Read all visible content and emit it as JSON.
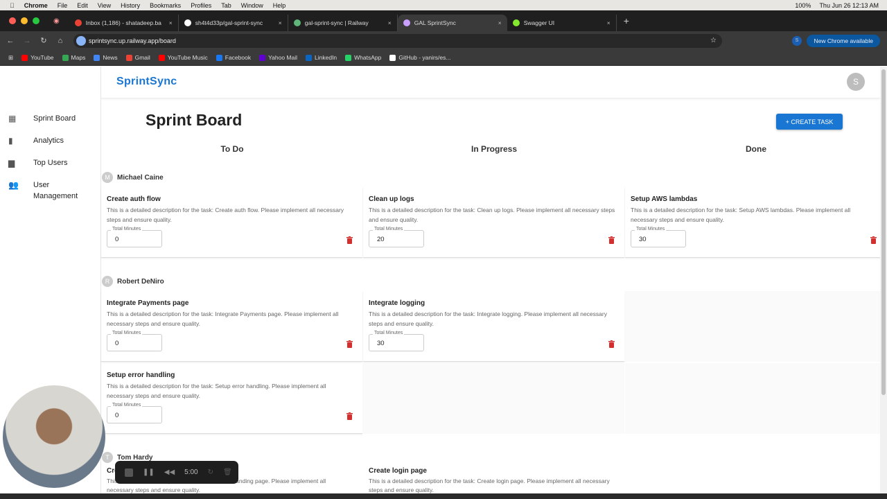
{
  "menubar": {
    "app": "Chrome",
    "items": [
      "File",
      "Edit",
      "View",
      "History",
      "Bookmarks",
      "Profiles",
      "Tab",
      "Window",
      "Help"
    ],
    "battery": "100%",
    "clock": "Thu Jun 26  12:13 AM"
  },
  "tabs": [
    {
      "label": "Inbox (1,186) - shatadeep.ba",
      "color": "#ea4335"
    },
    {
      "label": "sh4t4d33p/gal-sprint-sync",
      "color": "#ffffff"
    },
    {
      "label": "gal-sprint-sync | Railway",
      "color": "#5fb57a"
    },
    {
      "label": "GAL SprintSync",
      "color": "#c9a0ff",
      "active": true
    },
    {
      "label": "Swagger UI",
      "color": "#85ea2d"
    }
  ],
  "address": {
    "url": "sprintsync.up.railway.app/board",
    "new_chrome": "New Chrome available"
  },
  "bookmarks": [
    {
      "label": "YouTube",
      "color": "#ff0000"
    },
    {
      "label": "Maps",
      "color": "#34a853"
    },
    {
      "label": "News",
      "color": "#4285f4"
    },
    {
      "label": "Gmail",
      "color": "#ea4335"
    },
    {
      "label": "YouTube Music",
      "color": "#ff0000"
    },
    {
      "label": "Facebook",
      "color": "#1877f2"
    },
    {
      "label": "Yahoo Mail",
      "color": "#6001d2"
    },
    {
      "label": "LinkedIn",
      "color": "#0a66c2"
    },
    {
      "label": "WhatsApp",
      "color": "#25d366"
    },
    {
      "label": "GitHub - yanirs/es...",
      "color": "#ffffff"
    }
  ],
  "app": {
    "brand": "SprintSync",
    "avatar": "S",
    "title": "Sprint Board",
    "create_label": "+ CREATE TASK",
    "accent": "#1976d2",
    "delete_color": "#d32f2f"
  },
  "sidebar": [
    {
      "label": "Sprint Board",
      "icon": "dashboard-icon"
    },
    {
      "label": "Analytics",
      "icon": "bar-chart-icon"
    },
    {
      "label": "Top Users",
      "icon": "leaderboard-icon"
    },
    {
      "label": "User Management",
      "icon": "people-icon"
    }
  ],
  "columns": [
    "To Do",
    "In Progress",
    "Done"
  ],
  "field_label": "Total Minutes",
  "groups": [
    {
      "user": "Michael Caine",
      "initial": "M",
      "rows": [
        [
          {
            "title": "Create auth flow",
            "desc": "This is a detailed description for the task: Create auth flow. Please implement all necessary steps and ensure quality.",
            "minutes": "0"
          },
          {
            "title": "Clean up logs",
            "desc": "This is a detailed description for the task: Clean up logs. Please implement all necessary steps and ensure quality.",
            "minutes": "20"
          },
          {
            "title": "Setup AWS lambdas",
            "desc": "This is a detailed description for the task: Setup AWS lambdas. Please implement all necessary steps and ensure quality.",
            "minutes": "30"
          }
        ]
      ]
    },
    {
      "user": "Robert DeNiro",
      "initial": "R",
      "rows": [
        [
          {
            "title": "Integrate Payments page",
            "desc": "This is a detailed description for the task: Integrate Payments page. Please implement all necessary steps and ensure quality.",
            "minutes": "0"
          },
          {
            "title": "Integrate logging",
            "desc": "This is a detailed description for the task: Integrate logging. Please implement all necessary steps and ensure quality.",
            "minutes": "30"
          },
          null
        ],
        [
          {
            "title": "Setup error handling",
            "desc": "This is a detailed description for the task: Setup error handling. Please implement all necessary steps and ensure quality.",
            "minutes": "0"
          },
          null,
          null
        ]
      ]
    },
    {
      "user": "Tom Hardy",
      "initial": "T",
      "rows": [
        [
          {
            "title": "Create landing page",
            "desc": "This is a detailed description for the task: Create landing page. Please implement all necessary steps and ensure quality.",
            "minutes": ""
          },
          {
            "title": "Create login page",
            "desc": "This is a detailed description for the task: Create login page. Please implement all necessary steps and ensure quality.",
            "minutes": ""
          },
          null
        ]
      ]
    }
  ],
  "recorder": {
    "time": "5:00"
  }
}
